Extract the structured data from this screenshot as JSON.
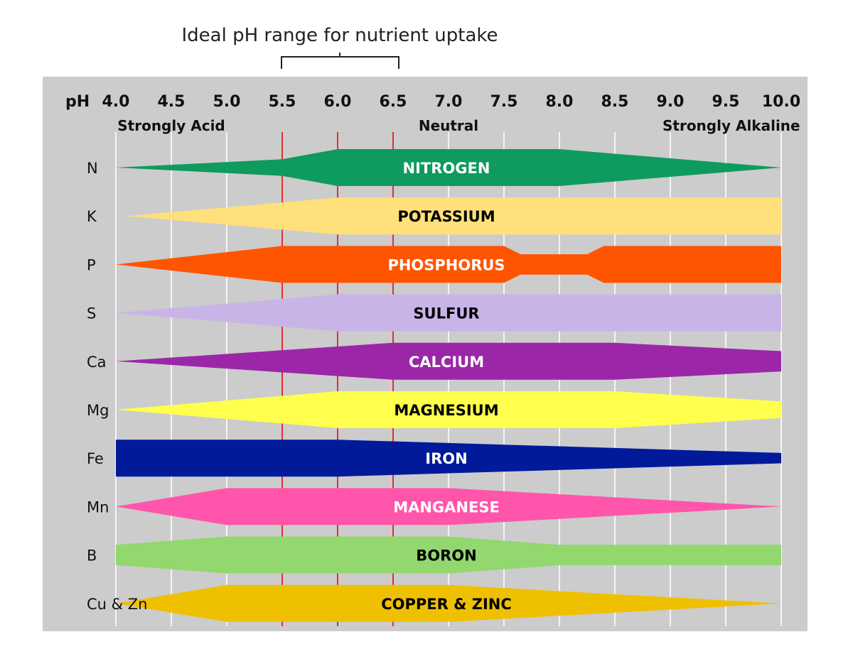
{
  "chart_data": {
    "type": "area",
    "title": "Ideal pH range for nutrient uptake",
    "axis_prefix": "pH",
    "xlim": [
      4.0,
      10.0
    ],
    "ticks": [
      "4.0",
      "4.5",
      "5.0",
      "5.5",
      "6.0",
      "6.5",
      "7.0",
      "7.5",
      "8.0",
      "8.5",
      "9.0",
      "9.5",
      "10.0"
    ],
    "tick_values": [
      4.0,
      4.5,
      5.0,
      5.5,
      6.0,
      6.5,
      7.0,
      7.5,
      8.0,
      8.5,
      9.0,
      9.5,
      10.0
    ],
    "zones": [
      {
        "label": "Strongly Acid",
        "at": 4.5
      },
      {
        "label": "Neutral",
        "at": 7.0
      },
      {
        "label": "Strongly Alkaline",
        "at": 9.55
      }
    ],
    "ideal_range": [
      5.5,
      6.5
    ],
    "ideal_lines": [
      5.5,
      6.0,
      6.5
    ],
    "grid": true,
    "series": [
      {
        "symbol": "N",
        "name": "NITROGEN",
        "color": "#0f9a5e",
        "text_color": "#ffffff",
        "availability": [
          [
            4.0,
            0.0
          ],
          [
            5.5,
            0.45
          ],
          [
            6.0,
            1.0
          ],
          [
            8.0,
            1.0
          ],
          [
            10.0,
            0.0
          ]
        ]
      },
      {
        "symbol": "K",
        "name": "POTASSIUM",
        "color": "#ffe07a",
        "text_color": "#000000",
        "availability": [
          [
            4.1,
            0.0
          ],
          [
            6.0,
            1.0
          ],
          [
            10.0,
            1.0
          ]
        ]
      },
      {
        "symbol": "P",
        "name": "PHOSPHORUS",
        "color": "#ff5500",
        "text_color": "#ffffff",
        "availability": [
          [
            4.0,
            0.0
          ],
          [
            5.5,
            1.0
          ],
          [
            7.5,
            1.0
          ],
          [
            7.65,
            0.55
          ],
          [
            8.25,
            0.55
          ],
          [
            8.4,
            1.0
          ],
          [
            10.0,
            1.0
          ]
        ]
      },
      {
        "symbol": "S",
        "name": "SULFUR",
        "color": "#c9b4e8",
        "text_color": "#000000",
        "availability": [
          [
            4.0,
            0.0
          ],
          [
            6.0,
            1.0
          ],
          [
            10.0,
            1.0
          ]
        ]
      },
      {
        "symbol": "Ca",
        "name": "CALCIUM",
        "color": "#9b27a8",
        "text_color": "#ffffff",
        "availability": [
          [
            4.0,
            0.0
          ],
          [
            6.5,
            1.0
          ],
          [
            8.5,
            1.0
          ],
          [
            10.0,
            0.55
          ]
        ]
      },
      {
        "symbol": "Mg",
        "name": "MAGNESIUM",
        "color": "#ffff4d",
        "text_color": "#000000",
        "availability": [
          [
            4.0,
            0.0
          ],
          [
            6.0,
            1.0
          ],
          [
            8.5,
            1.0
          ],
          [
            10.0,
            0.45
          ]
        ]
      },
      {
        "symbol": "Fe",
        "name": "IRON",
        "color": "#001a99",
        "text_color": "#ffffff",
        "availability": [
          [
            4.0,
            1.0
          ],
          [
            6.0,
            1.0
          ],
          [
            10.0,
            0.28
          ]
        ]
      },
      {
        "symbol": "Mn",
        "name": "MANGANESE",
        "color": "#ff55aa",
        "text_color": "#ffffff",
        "availability": [
          [
            4.0,
            0.0
          ],
          [
            5.0,
            1.0
          ],
          [
            7.0,
            1.0
          ],
          [
            10.0,
            0.0
          ]
        ]
      },
      {
        "symbol": "B",
        "name": "BORON",
        "color": "#92d86e",
        "text_color": "#000000",
        "availability": [
          [
            4.0,
            0.55
          ],
          [
            5.0,
            1.0
          ],
          [
            7.0,
            1.0
          ],
          [
            8.0,
            0.55
          ],
          [
            10.0,
            0.55
          ]
        ]
      },
      {
        "symbol": "Cu & Zn",
        "name": "COPPER & ZINC",
        "color": "#eec000",
        "text_color": "#000000",
        "availability": [
          [
            4.0,
            0.0
          ],
          [
            5.0,
            1.0
          ],
          [
            7.0,
            1.0
          ],
          [
            10.0,
            0.0
          ]
        ]
      }
    ]
  }
}
